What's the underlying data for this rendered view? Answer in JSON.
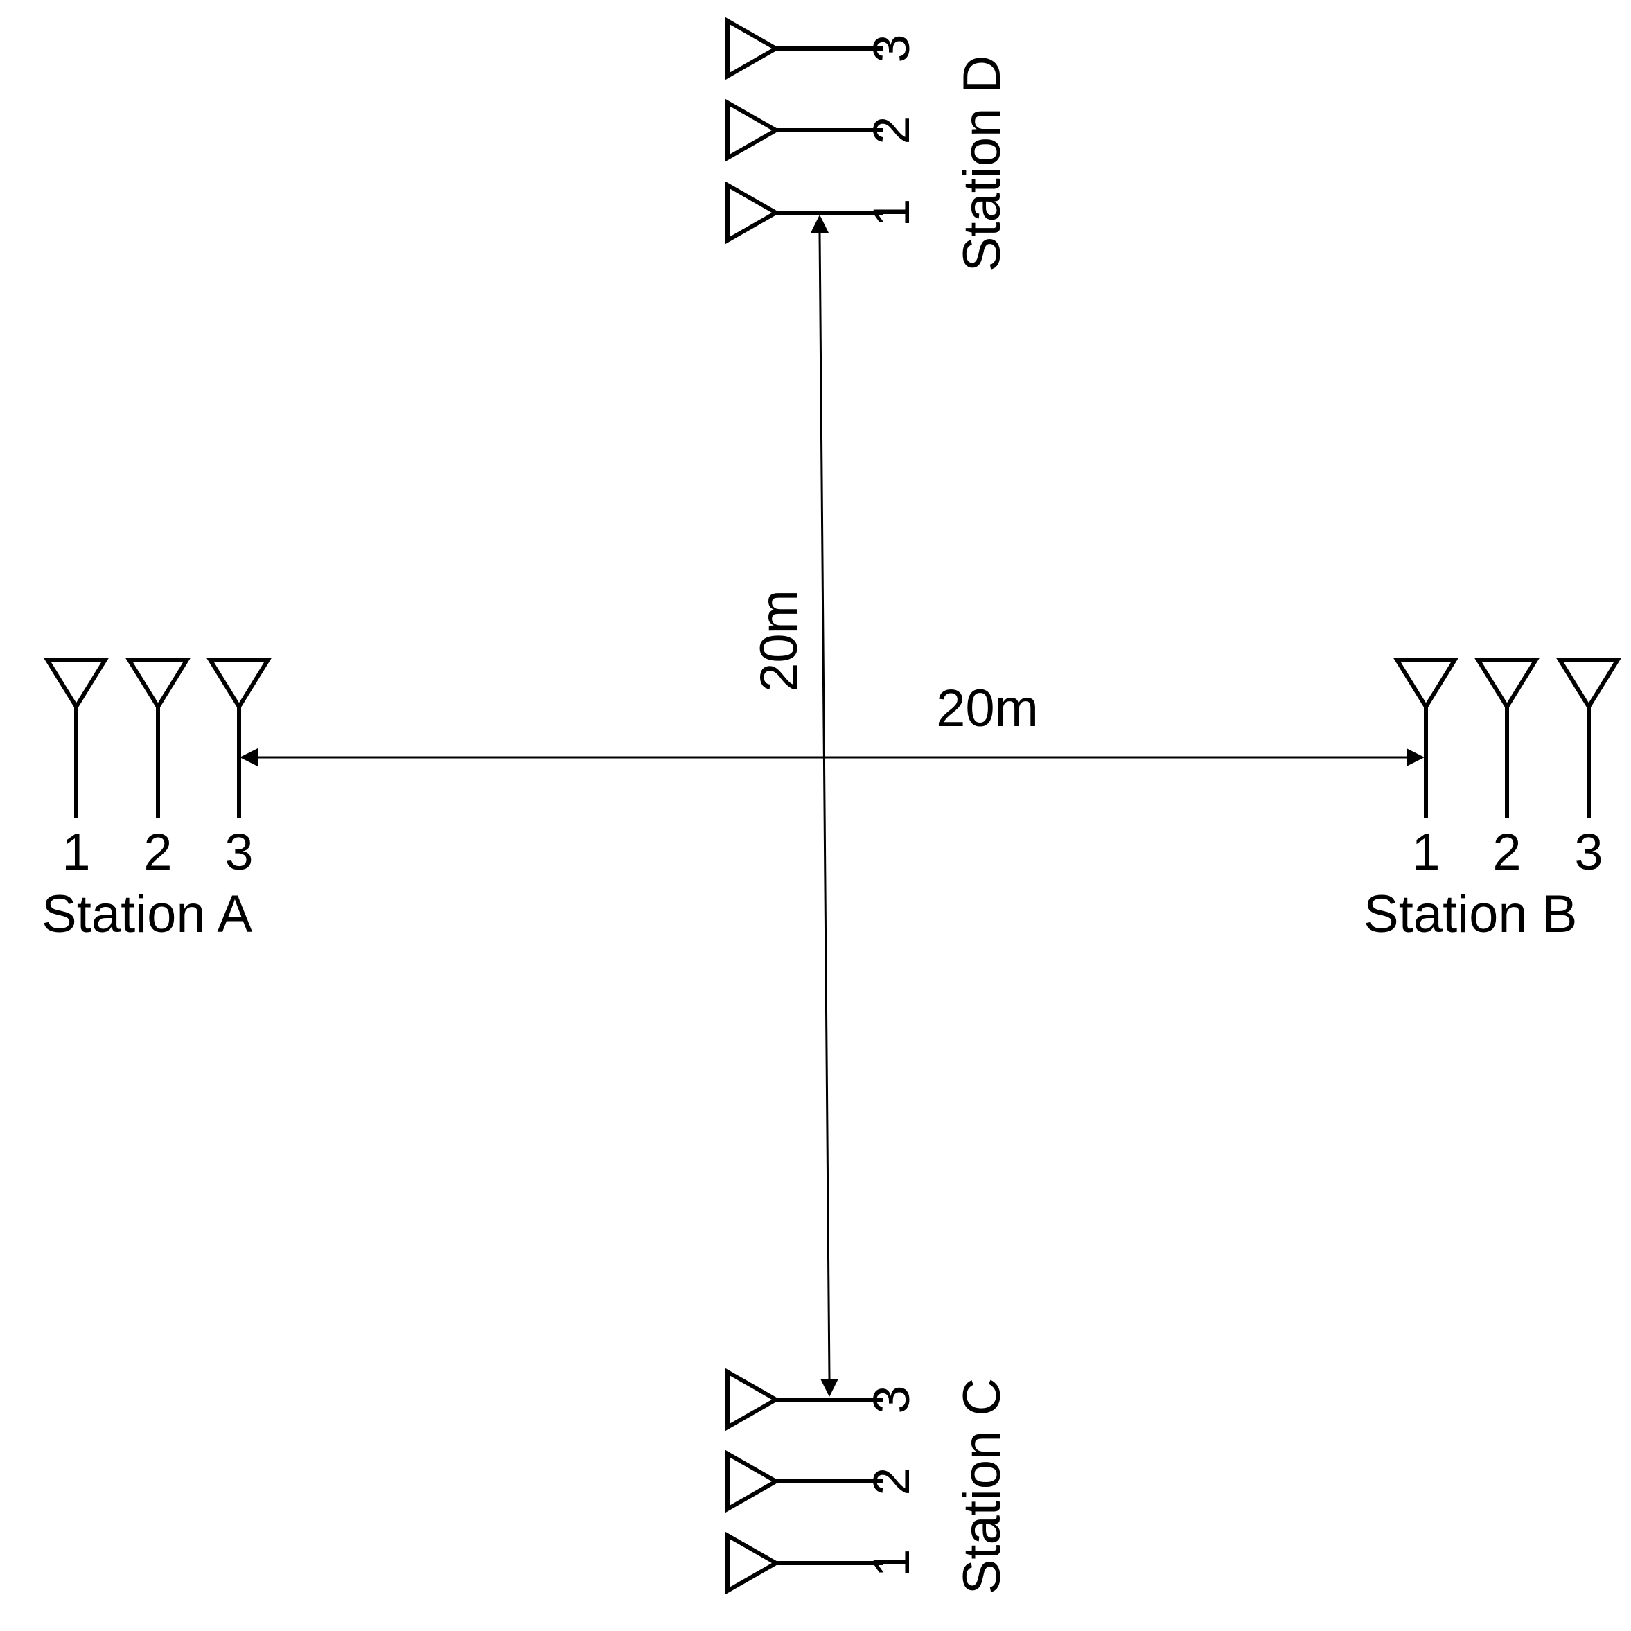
{
  "stations": {
    "A": {
      "label": "Station A",
      "antennas": [
        "1",
        "2",
        "3"
      ]
    },
    "B": {
      "label": "Station B",
      "antennas": [
        "1",
        "2",
        "3"
      ]
    },
    "C": {
      "label": "Station C",
      "antennas": [
        "1",
        "2",
        "3"
      ]
    },
    "D": {
      "label": "Station D",
      "antennas": [
        "1",
        "2",
        "3"
      ]
    }
  },
  "dimensions": {
    "horizontal_label": "20m",
    "vertical_label": "20m"
  },
  "colors": {
    "stroke": "#000000",
    "background": "#ffffff"
  }
}
